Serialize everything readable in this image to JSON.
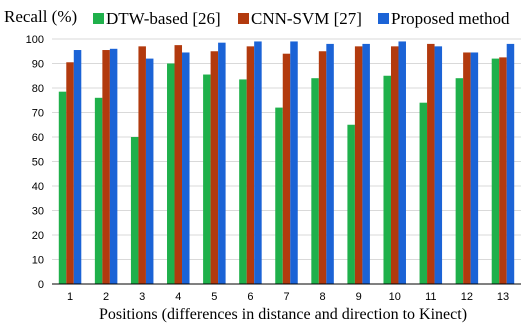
{
  "chart_data": {
    "type": "bar",
    "ylabel": "Recall (%)",
    "xlabel": "Positions (differences in distance and direction to Kinect)",
    "categories": [
      "1",
      "2",
      "3",
      "4",
      "5",
      "6",
      "7",
      "8",
      "9",
      "10",
      "11",
      "12",
      "13"
    ],
    "ylim": [
      0,
      100
    ],
    "yticks": [
      0,
      10,
      20,
      30,
      40,
      50,
      60,
      70,
      80,
      90,
      100
    ],
    "grid": true,
    "legend_position": "top",
    "series": [
      {
        "name": "DTW-based [26]",
        "color": "#1fb04b",
        "values": [
          78.5,
          76,
          60,
          90,
          85.5,
          83.5,
          72,
          84,
          65,
          85,
          74,
          84,
          92
        ]
      },
      {
        "name": "CNN-SVM [27]",
        "color": "#b23a0e",
        "values": [
          90.5,
          95.5,
          97,
          97.5,
          95,
          97,
          94,
          95,
          97,
          97,
          98,
          94.5,
          92.5
        ]
      },
      {
        "name": "Proposed method",
        "color": "#1b63d6",
        "values": [
          95.5,
          96,
          92,
          94.5,
          98.5,
          99,
          99,
          98,
          98,
          99,
          97,
          94.5,
          98
        ]
      }
    ]
  }
}
